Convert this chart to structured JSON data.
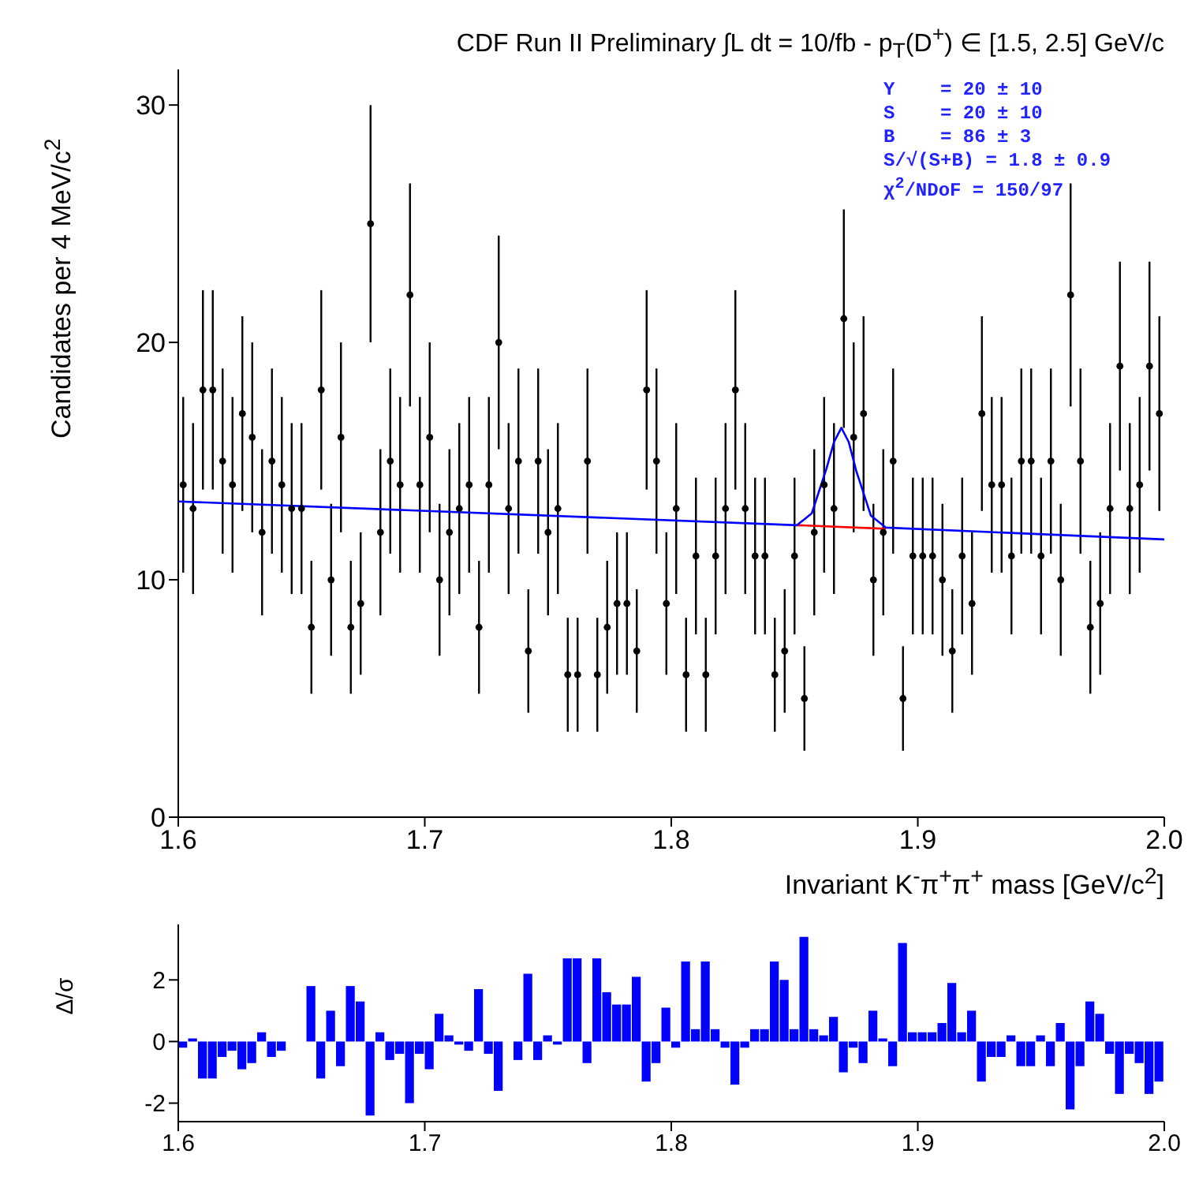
{
  "chart_data": [
    {
      "type": "scatter",
      "title": "CDF Run II Preliminary ∫L dt = 10/fb - p$_{T}$(D$^{+}$) ∈ [1.5, 2.5] GeV/c",
      "xlabel": "Invariant K$^{-}$π$^{+}$π$^{+}$ mass [GeV/c$^{2}$]",
      "ylabel": "Candidates per 4 MeV/c$^{2}$",
      "xlim": [
        1.6,
        2.0
      ],
      "xticks": [
        1.6,
        1.7,
        1.8,
        1.9,
        {
          "value": 2,
          "label": "2.0"
        }
      ],
      "ylim": [
        0,
        31.5
      ],
      "yticks": [
        0,
        10,
        20,
        30
      ],
      "annotations": [
        "Y    = 20 ± 10",
        "S    = 20 ± 10",
        "B    = 86 ± 3",
        "S/√(S+B) = 1.8 ± 0.9",
        "χ$^{2}$/NDoF = 150/97"
      ],
      "series": [
        {
          "type": "scatter",
          "color": "#000000",
          "marker": "circle",
          "x": [
            1.602,
            1.606,
            1.61,
            1.614,
            1.618,
            1.622,
            1.626,
            1.63,
            1.634,
            1.638,
            1.642,
            1.646,
            1.65,
            1.654,
            1.658,
            1.662,
            1.666,
            1.67,
            1.674,
            1.678,
            1.682,
            1.686,
            1.69,
            1.694,
            1.698,
            1.702,
            1.706,
            1.71,
            1.714,
            1.718,
            1.722,
            1.726,
            1.73,
            1.734,
            1.738,
            1.742,
            1.746,
            1.75,
            1.754,
            1.758,
            1.762,
            1.766,
            1.77,
            1.774,
            1.778,
            1.782,
            1.786,
            1.79,
            1.794,
            1.798,
            1.802,
            1.806,
            1.81,
            1.814,
            1.818,
            1.822,
            1.826,
            1.83,
            1.834,
            1.838,
            1.842,
            1.846,
            1.85,
            1.854,
            1.858,
            1.862,
            1.866,
            1.87,
            1.874,
            1.878,
            1.882,
            1.886,
            1.89,
            1.894,
            1.898,
            1.902,
            1.906,
            1.91,
            1.914,
            1.918,
            1.922,
            1.926,
            1.93,
            1.934,
            1.938,
            1.942,
            1.946,
            1.95,
            1.954,
            1.958,
            1.962,
            1.966,
            1.97,
            1.974,
            1.978,
            1.982,
            1.986,
            1.99,
            1.994,
            1.998
          ],
          "values": [
            14,
            13,
            18,
            18,
            15,
            14,
            17,
            16,
            12,
            15,
            14,
            13,
            13,
            8,
            18,
            10,
            16,
            8,
            9,
            25,
            12,
            15,
            14,
            22,
            14,
            16,
            10,
            12,
            13,
            14,
            8,
            14,
            20,
            13,
            15,
            7,
            15,
            12,
            13,
            6,
            6,
            15,
            6,
            8,
            9,
            9,
            7,
            18,
            15,
            9,
            13,
            6,
            11,
            6,
            11,
            13,
            18,
            13,
            11,
            11,
            6,
            7,
            11,
            5,
            12,
            14,
            13,
            21,
            16,
            17,
            10,
            12,
            15,
            5,
            11,
            11,
            11,
            10,
            7,
            11,
            9,
            17,
            14,
            14,
            11,
            15,
            15,
            11,
            15,
            10,
            22,
            15,
            8,
            9,
            13,
            19,
            13,
            14,
            19,
            17
          ],
          "errors": [
            3.7,
            3.6,
            4.2,
            4.2,
            3.9,
            3.7,
            4.1,
            4,
            3.5,
            3.9,
            3.7,
            3.6,
            3.6,
            2.8,
            4.2,
            3.2,
            4,
            2.8,
            3,
            5,
            3.5,
            3.9,
            3.7,
            4.7,
            3.7,
            4,
            3.2,
            3.5,
            3.6,
            3.7,
            2.8,
            3.7,
            4.5,
            3.6,
            3.9,
            2.6,
            3.9,
            3.5,
            3.6,
            2.4,
            2.4,
            3.9,
            2.4,
            2.8,
            3,
            3,
            2.6,
            4.2,
            3.9,
            3,
            3.6,
            2.4,
            3.3,
            2.4,
            3.3,
            3.6,
            4.2,
            3.6,
            3.3,
            3.3,
            2.4,
            2.6,
            3.3,
            2.2,
            3.5,
            3.7,
            3.6,
            4.6,
            4,
            4.1,
            3.2,
            3.5,
            3.9,
            2.2,
            3.3,
            3.3,
            3.3,
            3.2,
            2.6,
            3.3,
            3,
            4.1,
            3.7,
            3.7,
            3.3,
            3.9,
            3.9,
            3.3,
            3.9,
            3.2,
            4.7,
            3.9,
            2.8,
            3,
            3.6,
            4.4,
            3.6,
            3.7,
            4.4,
            4.1
          ]
        },
        {
          "type": "line",
          "color": "#ff0000",
          "x": [
            1.851,
            1.887
          ],
          "values": [
            12.3,
            12.15
          ]
        },
        {
          "type": "line",
          "color": "#0000ff",
          "x": [
            1.6,
            1.851,
            1.857,
            1.863,
            1.866,
            1.869,
            1.872,
            1.875,
            1.881,
            1.887,
            2.0
          ],
          "values": [
            13.3,
            12.3,
            12.8,
            14.7,
            15.8,
            16.4,
            15.8,
            14.6,
            12.7,
            12.2,
            11.7
          ]
        }
      ]
    },
    {
      "type": "bar",
      "ylabel": "Δ/σ",
      "color": "#0000ff",
      "xlim": [
        1.6,
        2.0
      ],
      "xticks": [
        1.6,
        1.7,
        1.8,
        1.9,
        {
          "value": 2,
          "label": "2.0"
        }
      ],
      "ylim": [
        -2.6,
        3.8
      ],
      "yticks": [
        -2,
        0,
        2
      ],
      "x": [
        1.602,
        1.606,
        1.61,
        1.614,
        1.618,
        1.622,
        1.626,
        1.63,
        1.634,
        1.638,
        1.642,
        1.646,
        1.65,
        1.654,
        1.658,
        1.662,
        1.666,
        1.67,
        1.674,
        1.678,
        1.682,
        1.686,
        1.69,
        1.694,
        1.698,
        1.702,
        1.706,
        1.71,
        1.714,
        1.718,
        1.722,
        1.726,
        1.73,
        1.734,
        1.738,
        1.742,
        1.746,
        1.75,
        1.754,
        1.758,
        1.762,
        1.766,
        1.77,
        1.774,
        1.778,
        1.782,
        1.786,
        1.79,
        1.794,
        1.798,
        1.802,
        1.806,
        1.81,
        1.814,
        1.818,
        1.822,
        1.826,
        1.83,
        1.834,
        1.838,
        1.842,
        1.846,
        1.85,
        1.854,
        1.858,
        1.862,
        1.866,
        1.87,
        1.874,
        1.878,
        1.882,
        1.886,
        1.89,
        1.894,
        1.898,
        1.902,
        1.906,
        1.91,
        1.914,
        1.918,
        1.922,
        1.926,
        1.93,
        1.934,
        1.938,
        1.942,
        1.946,
        1.95,
        1.954,
        1.958,
        1.962,
        1.966,
        1.97,
        1.974,
        1.978,
        1.982,
        1.986,
        1.99,
        1.994,
        1.998
      ],
      "values": [
        -0.2,
        0.1,
        -1.2,
        -1.2,
        -0.5,
        -0.3,
        -0.9,
        -0.7,
        0.3,
        -0.5,
        -0.3,
        0,
        0,
        1.8,
        -1.2,
        1,
        -0.8,
        1.8,
        1.3,
        -2.4,
        0.3,
        -0.6,
        -0.4,
        -2,
        -0.4,
        -0.9,
        0.9,
        0.2,
        -0.1,
        -0.3,
        1.7,
        -0.4,
        -1.6,
        0,
        -0.6,
        2.2,
        -0.6,
        0.2,
        -0.1,
        2.7,
        2.7,
        -0.7,
        2.7,
        1.6,
        1.2,
        1.2,
        2.1,
        -1.3,
        -0.7,
        1.1,
        -0.2,
        2.6,
        0.4,
        2.6,
        0.4,
        -0.2,
        -1.4,
        -0.2,
        0.4,
        0.4,
        2.6,
        2,
        0.4,
        3.4,
        0.4,
        0.2,
        0.8,
        -1,
        -0.2,
        -0.7,
        1,
        0.1,
        -0.8,
        3.2,
        0.3,
        0.3,
        0.3,
        0.6,
        1.9,
        0.3,
        1,
        -1.3,
        -0.5,
        -0.5,
        0.2,
        -0.8,
        -0.8,
        0.2,
        -0.8,
        0.6,
        -2.2,
        -0.8,
        1.3,
        0.9,
        -0.4,
        -1.7,
        -0.4,
        -0.7,
        -1.7,
        -1.3
      ]
    }
  ]
}
